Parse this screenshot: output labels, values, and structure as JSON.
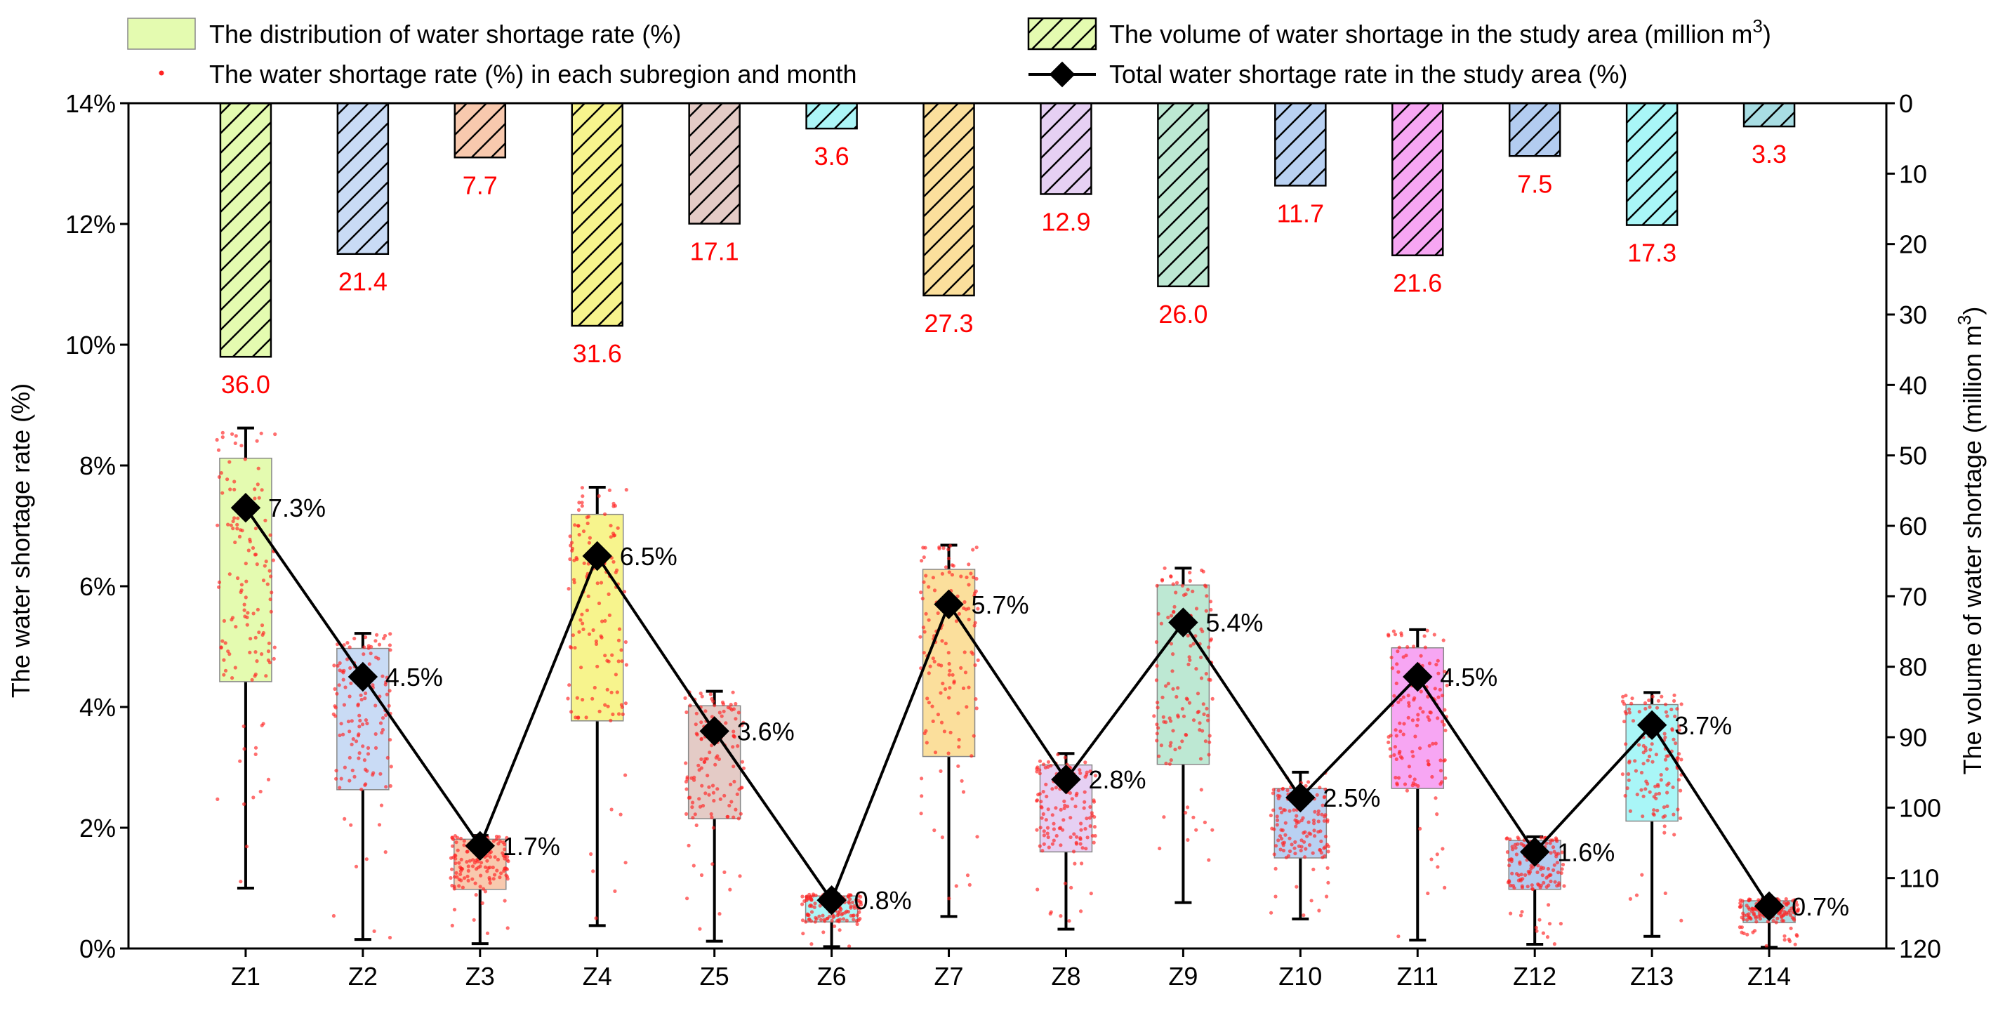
{
  "chart_data": {
    "type": "box_bar_line_combo",
    "categories": [
      "Z1",
      "Z2",
      "Z3",
      "Z4",
      "Z5",
      "Z6",
      "Z7",
      "Z8",
      "Z9",
      "Z10",
      "Z11",
      "Z12",
      "Z13",
      "Z14"
    ],
    "y_left": {
      "label": "The water shortage rate (%)",
      "range": [
        0,
        14
      ],
      "ticks": [
        "0%",
        "2%",
        "4%",
        "6%",
        "8%",
        "10%",
        "12%",
        "14%"
      ],
      "tick_values": [
        0,
        2,
        4,
        6,
        8,
        10,
        12,
        14
      ]
    },
    "y_right": {
      "label_main": "The volume of water shortage (million m",
      "label_sup": "3",
      "label_end": ")",
      "range": [
        0,
        120
      ],
      "inverted": true,
      "ticks": [
        "0",
        "10",
        "20",
        "30",
        "40",
        "50",
        "60",
        "70",
        "80",
        "90",
        "100",
        "110",
        "120"
      ],
      "tick_values": [
        0,
        10,
        20,
        30,
        40,
        50,
        60,
        70,
        80,
        90,
        100,
        110,
        120
      ]
    },
    "legend": {
      "box": "The distribution of water shortage rate (%)",
      "scatter": "The water shortage rate (%) in each subregion and month",
      "bar_main": "The volume of water shortage in the study area (million m",
      "bar_sup": "3",
      "bar_end": ")",
      "line": "Total water shortage rate in the study area (%)"
    },
    "box_colors": [
      "#e4fbb0",
      "#c9dbf5",
      "#f8c9ae",
      "#f7f48d",
      "#e4cbc6",
      "#acf6f7",
      "#fbdf9c",
      "#e6d0f3",
      "#bde8d3",
      "#b9d1f2",
      "#f7a6f3",
      "#b3ccf0",
      "#a9f6f7",
      "#a8dde3"
    ],
    "boxes": [
      {
        "whisker_low": 1.0,
        "q1": 4.42,
        "q3": 8.12,
        "whisker_high": 8.62
      },
      {
        "whisker_low": 0.15,
        "q1": 2.63,
        "q3": 4.97,
        "whisker_high": 5.22
      },
      {
        "whisker_low": 0.08,
        "q1": 0.98,
        "q3": 1.81,
        "whisker_high": 1.87
      },
      {
        "whisker_low": 0.38,
        "q1": 3.77,
        "q3": 7.19,
        "whisker_high": 7.64
      },
      {
        "whisker_low": 0.12,
        "q1": 2.15,
        "q3": 4.02,
        "whisker_high": 4.26
      },
      {
        "whisker_low": 0.03,
        "q1": 0.44,
        "q3": 0.87,
        "whisker_high": 0.9
      },
      {
        "whisker_low": 0.53,
        "q1": 3.18,
        "q3": 6.28,
        "whisker_high": 6.68
      },
      {
        "whisker_low": 0.32,
        "q1": 1.6,
        "q3": 3.04,
        "whisker_high": 3.23
      },
      {
        "whisker_low": 0.76,
        "q1": 3.05,
        "q3": 6.02,
        "whisker_high": 6.3
      },
      {
        "whisker_low": 0.49,
        "q1": 1.5,
        "q3": 2.65,
        "whisker_high": 2.92
      },
      {
        "whisker_low": 0.14,
        "q1": 2.65,
        "q3": 4.98,
        "whisker_high": 5.28
      },
      {
        "whisker_low": 0.07,
        "q1": 0.98,
        "q3": 1.79,
        "whisker_high": 1.85
      },
      {
        "whisker_low": 0.2,
        "q1": 2.11,
        "q3": 4.04,
        "whisker_high": 4.24
      },
      {
        "whisker_low": 0.02,
        "q1": 0.43,
        "q3": 0.79,
        "whisker_high": 0.82
      }
    ],
    "volume_values": [
      36.0,
      21.4,
      7.7,
      31.6,
      17.1,
      3.6,
      27.3,
      12.9,
      26.0,
      11.7,
      21.6,
      7.5,
      17.3,
      3.3
    ],
    "volume_labels": [
      "36.0",
      "21.4",
      "7.7",
      "31.6",
      "17.1",
      "3.6",
      "27.3",
      "12.9",
      "26.0",
      "11.7",
      "21.6",
      "7.5",
      "17.3",
      "3.3"
    ],
    "total_rate_values": [
      7.3,
      4.5,
      1.7,
      6.5,
      3.6,
      0.8,
      5.7,
      2.8,
      5.4,
      2.5,
      4.5,
      1.6,
      3.7,
      0.7
    ],
    "total_rate_labels": [
      "7.3%",
      "4.5%",
      "1.7%",
      "6.5%",
      "3.6%",
      "0.8%",
      "5.7%",
      "2.8%",
      "5.4%",
      "2.5%",
      "4.5%",
      "1.6%",
      "3.7%",
      "0.7%"
    ],
    "colors": {
      "scatter": "#ff2222",
      "label_red": "#ff0000",
      "line": "#000000",
      "axis": "#000000"
    }
  }
}
